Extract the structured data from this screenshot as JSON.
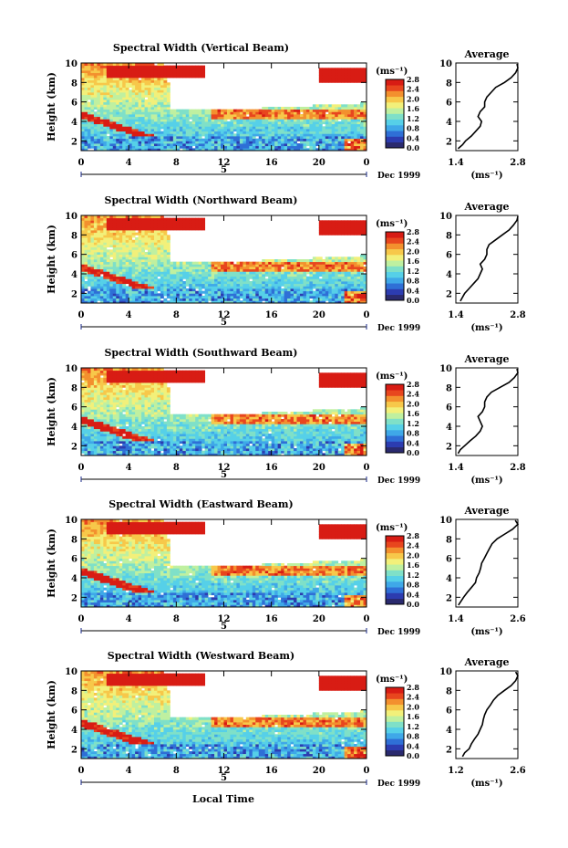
{
  "figure": {
    "xlabel": "Local Time",
    "date_label": "Dec 1999",
    "day_label": "5",
    "units_label": "(ms⁻¹)",
    "average_title": "Average"
  },
  "colorbar": {
    "ticks": [
      "2.8",
      "2.4",
      "2.0",
      "1.6",
      "1.2",
      "0.8",
      "0.4",
      "0.0"
    ],
    "colors": [
      "#2a2a6e",
      "#2c3cb0",
      "#2f6fd6",
      "#3fa8e8",
      "#56d0e8",
      "#7fe0c8",
      "#bff0a0",
      "#f2f07a",
      "#f7c84a",
      "#f3902e",
      "#e8461e",
      "#d81c14"
    ]
  },
  "chart_data": [
    {
      "type": "heatmap",
      "title": "Spectral Width (Vertical Beam)",
      "ylabel": "Height (km)",
      "x_ticks": [
        "0",
        "4",
        "8",
        "12",
        "16",
        "20",
        "0"
      ],
      "xlim": [
        0,
        24
      ],
      "y_ticks": [
        "2",
        "4",
        "6",
        "8",
        "10"
      ],
      "ylim": [
        1,
        10
      ],
      "colorbar_range": [
        0.0,
        2.8
      ],
      "description_values": "Spectral width (ms⁻¹) vs local time and height",
      "profile": {
        "title": "Average",
        "xlabel": "(ms⁻¹)",
        "x_ticks": [
          "1.4",
          "2.8"
        ],
        "xlim": [
          1.4,
          2.8
        ],
        "y_ticks": [
          "2",
          "4",
          "6",
          "8",
          "10"
        ],
        "ylim": [
          1,
          10
        ],
        "height": [
          1.2,
          1.6,
          2.0,
          2.5,
          3.0,
          3.5,
          4.0,
          4.5,
          5.0,
          5.5,
          6.0,
          6.5,
          7.0,
          7.5,
          8.0,
          8.5,
          9.0,
          9.5,
          9.9
        ],
        "value": [
          1.45,
          1.55,
          1.62,
          1.75,
          1.85,
          1.95,
          1.98,
          1.9,
          1.95,
          2.05,
          2.05,
          2.1,
          2.2,
          2.3,
          2.5,
          2.65,
          2.75,
          2.8,
          2.78
        ]
      }
    },
    {
      "type": "heatmap",
      "title": "Spectral Width (Northward Beam)",
      "ylabel": "Height (km)",
      "x_ticks": [
        "0",
        "4",
        "8",
        "12",
        "16",
        "20",
        "0"
      ],
      "xlim": [
        0,
        24
      ],
      "y_ticks": [
        "2",
        "4",
        "6",
        "8",
        "10"
      ],
      "ylim": [
        1,
        10
      ],
      "colorbar_range": [
        0.0,
        2.8
      ],
      "profile": {
        "title": "Average",
        "xlabel": "(ms⁻¹)",
        "x_ticks": [
          "1.4",
          "2.8"
        ],
        "xlim": [
          1.4,
          2.8
        ],
        "y_ticks": [
          "2",
          "4",
          "6",
          "8",
          "10"
        ],
        "ylim": [
          1,
          10
        ],
        "height": [
          1.2,
          1.6,
          2.0,
          2.5,
          3.0,
          3.5,
          4.0,
          4.5,
          5.0,
          5.5,
          6.0,
          6.5,
          7.0,
          7.5,
          8.0,
          8.5,
          9.0,
          9.5,
          9.9
        ],
        "value": [
          1.5,
          1.55,
          1.6,
          1.7,
          1.8,
          1.9,
          1.95,
          2.0,
          1.95,
          2.05,
          2.1,
          2.1,
          2.15,
          2.3,
          2.45,
          2.6,
          2.7,
          2.78,
          2.8
        ]
      }
    },
    {
      "type": "heatmap",
      "title": "Spectral Width (Southward Beam)",
      "ylabel": "Height (km)",
      "x_ticks": [
        "0",
        "4",
        "8",
        "12",
        "16",
        "20",
        "0"
      ],
      "xlim": [
        0,
        24
      ],
      "y_ticks": [
        "2",
        "4",
        "6",
        "8",
        "10"
      ],
      "ylim": [
        1,
        10
      ],
      "colorbar_range": [
        0.0,
        2.8
      ],
      "profile": {
        "title": "Average",
        "xlabel": "(ms⁻¹)",
        "x_ticks": [
          "1.4",
          "2.8"
        ],
        "xlim": [
          1.4,
          2.8
        ],
        "y_ticks": [
          "2",
          "4",
          "6",
          "8",
          "10"
        ],
        "ylim": [
          1,
          10
        ],
        "height": [
          1.2,
          1.6,
          2.0,
          2.5,
          3.0,
          3.5,
          4.0,
          4.5,
          5.0,
          5.5,
          6.0,
          6.5,
          7.0,
          7.5,
          8.0,
          8.5,
          9.0,
          9.5,
          9.9
        ],
        "value": [
          1.45,
          1.5,
          1.6,
          1.72,
          1.85,
          1.95,
          2.0,
          1.95,
          1.9,
          2.0,
          2.05,
          2.05,
          2.1,
          2.2,
          2.4,
          2.6,
          2.72,
          2.8,
          2.78
        ]
      }
    },
    {
      "type": "heatmap",
      "title": "Spectral Width (Eastward Beam)",
      "ylabel": "Height (km)",
      "x_ticks": [
        "0",
        "4",
        "8",
        "12",
        "16",
        "20",
        "0"
      ],
      "xlim": [
        0,
        24
      ],
      "y_ticks": [
        "2",
        "4",
        "6",
        "8",
        "10"
      ],
      "ylim": [
        1,
        10
      ],
      "colorbar_range": [
        0.0,
        2.8
      ],
      "profile": {
        "title": "Average",
        "xlabel": "(ms⁻¹)",
        "x_ticks": [
          "1.4",
          "2.6"
        ],
        "xlim": [
          1.4,
          2.6
        ],
        "y_ticks": [
          "2",
          "4",
          "6",
          "8",
          "10"
        ],
        "ylim": [
          1,
          10
        ],
        "height": [
          1.2,
          1.6,
          2.0,
          2.5,
          3.0,
          3.5,
          4.0,
          4.5,
          5.0,
          5.5,
          6.0,
          6.5,
          7.0,
          7.5,
          8.0,
          8.5,
          9.0,
          9.5,
          9.9
        ],
        "value": [
          1.45,
          1.5,
          1.55,
          1.62,
          1.7,
          1.78,
          1.8,
          1.85,
          1.88,
          1.9,
          1.95,
          2.0,
          2.05,
          2.1,
          2.2,
          2.35,
          2.5,
          2.6,
          2.55
        ]
      }
    },
    {
      "type": "heatmap",
      "title": "Spectral Width (Westward Beam)",
      "ylabel": "Height (km)",
      "x_ticks": [
        "0",
        "4",
        "8",
        "12",
        "16",
        "20",
        "0"
      ],
      "xlim": [
        0,
        24
      ],
      "y_ticks": [
        "2",
        "4",
        "6",
        "8",
        "10"
      ],
      "ylim": [
        1,
        10
      ],
      "colorbar_range": [
        0.0,
        2.8
      ],
      "profile": {
        "title": "Average",
        "xlabel": "(ms⁻¹)",
        "x_ticks": [
          "1.2",
          "2.6"
        ],
        "xlim": [
          1.2,
          2.6
        ],
        "y_ticks": [
          "2",
          "4",
          "6",
          "8",
          "10"
        ],
        "ylim": [
          1,
          10
        ],
        "height": [
          1.2,
          1.6,
          2.0,
          2.5,
          3.0,
          3.5,
          4.0,
          4.5,
          5.0,
          5.5,
          6.0,
          6.5,
          7.0,
          7.5,
          8.0,
          8.5,
          9.0,
          9.5,
          9.9
        ],
        "value": [
          1.35,
          1.4,
          1.5,
          1.55,
          1.62,
          1.7,
          1.75,
          1.8,
          1.82,
          1.85,
          1.9,
          1.98,
          2.05,
          2.15,
          2.3,
          2.45,
          2.55,
          2.6,
          2.55
        ]
      }
    }
  ]
}
